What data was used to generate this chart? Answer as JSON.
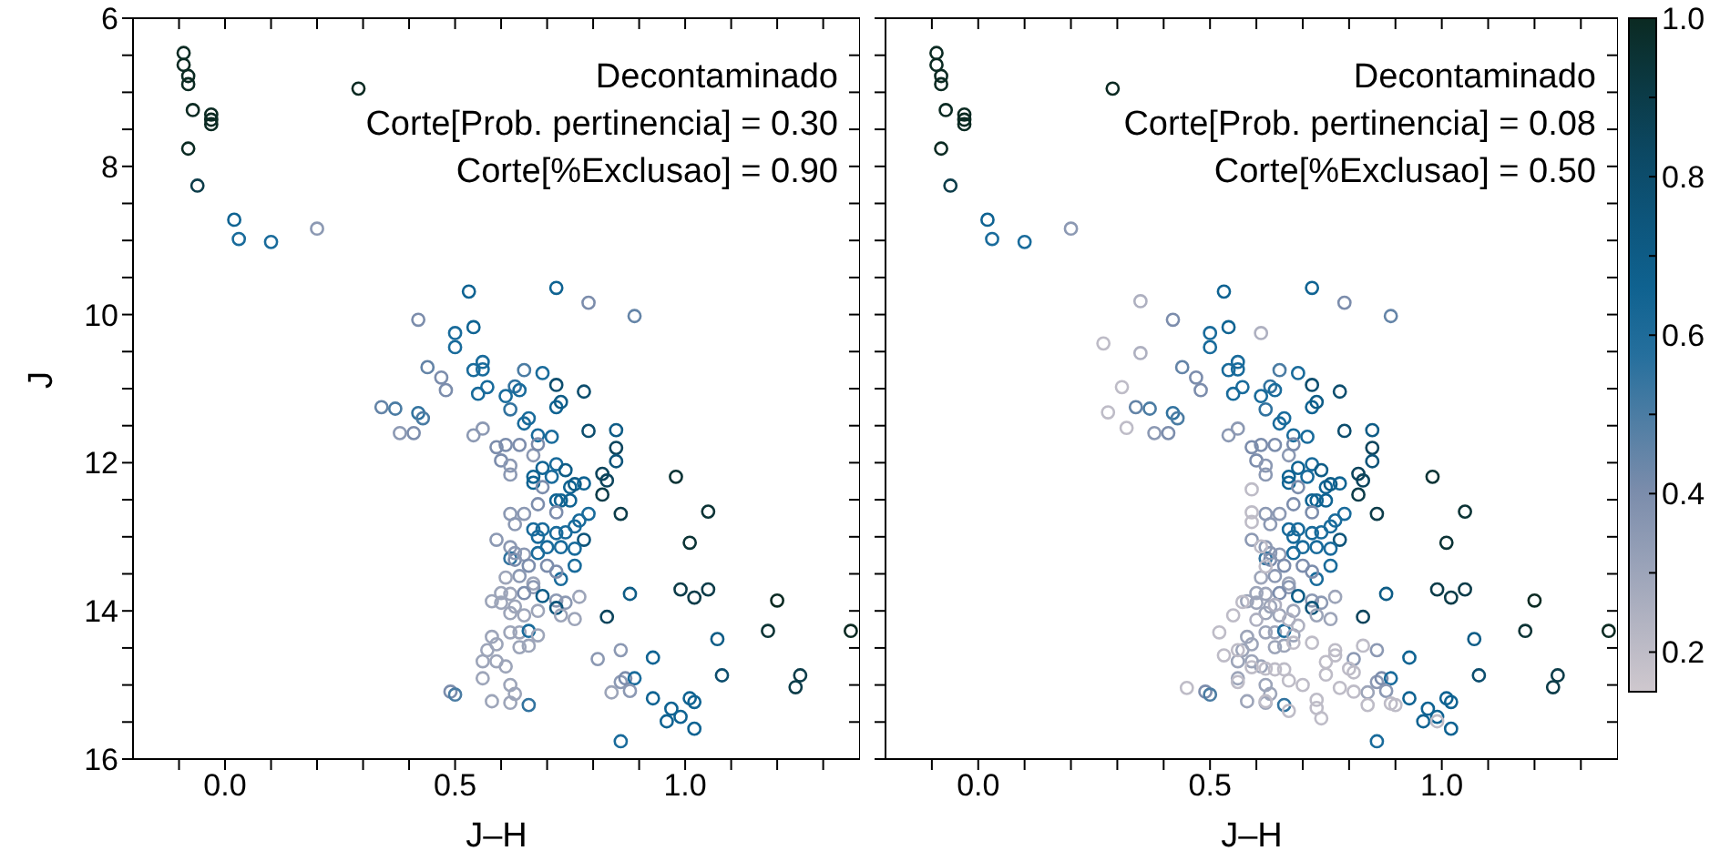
{
  "chart_data": [
    {
      "type": "scatter",
      "xlabel": "J–H",
      "ylabel": "J",
      "marker": "circle",
      "annotations": [
        "Decontaminado",
        "Corte[Prob. pertinencia] = 0.30",
        "Corte[%Exclusao] = 0.90"
      ],
      "xlim": [
        -0.2,
        1.38
      ],
      "ylim": [
        16,
        6
      ],
      "xticks": [
        {
          "value": -0.1,
          "label": null
        },
        {
          "value": 0,
          "label": "0.0"
        },
        {
          "value": 0.1,
          "label": null
        },
        {
          "value": 0.2,
          "label": null
        },
        {
          "value": 0.3,
          "label": null
        },
        {
          "value": 0.4,
          "label": null
        },
        {
          "value": 0.5,
          "label": "0.5"
        },
        {
          "value": 0.6,
          "label": null
        },
        {
          "value": 0.7,
          "label": null
        },
        {
          "value": 0.8,
          "label": null
        },
        {
          "value": 0.9,
          "label": null
        },
        {
          "value": 1,
          "label": "1.0"
        },
        {
          "value": 1.1,
          "label": null
        },
        {
          "value": 1.2,
          "label": null
        },
        {
          "value": 1.3,
          "label": null
        }
      ],
      "yticks": [
        6,
        {
          "value": 6.5,
          "label": null
        },
        {
          "value": 7,
          "label": null
        },
        {
          "value": 7.5,
          "label": null
        },
        8,
        {
          "value": 8.5,
          "label": null
        },
        {
          "value": 9,
          "label": null
        },
        {
          "value": 9.5,
          "label": null
        },
        10,
        {
          "value": 10.5,
          "label": null
        },
        {
          "value": 11,
          "label": null
        },
        {
          "value": 11.5,
          "label": null
        },
        12,
        {
          "value": 12.5,
          "label": null
        },
        {
          "value": 13,
          "label": null
        },
        {
          "value": 13.5,
          "label": null
        },
        14,
        {
          "value": 14.5,
          "label": null
        },
        {
          "value": 15,
          "label": null
        },
        {
          "value": 15.5,
          "label": null
        },
        16
      ],
      "series": [
        {
          "x": [
            -0.09,
            -0.09,
            -0.08,
            -0.08,
            -0.07,
            -0.03,
            -0.03,
            -0.03,
            -0.08,
            0.29,
            -0.06,
            0.02,
            0.03,
            0.1,
            0.2,
            0.53,
            0.72,
            0.79,
            0.89,
            0.42,
            0.5,
            0.54,
            0.5,
            0.44,
            0.47,
            0.48,
            0.56,
            0.54,
            0.56,
            0.57,
            0.55,
            0.65,
            0.69,
            0.63,
            0.64,
            0.72,
            0.78,
            0.61,
            0.62,
            0.72,
            0.73,
            0.34,
            0.37,
            0.42,
            0.43,
            0.38,
            0.41,
            0.54,
            0.56,
            0.66,
            0.65,
            0.68,
            0.71,
            0.79,
            0.85,
            0.85,
            0.85,
            0.82,
            0.83,
            0.82,
            0.86,
            0.98,
            1.05,
            1.01,
            0.59,
            0.61,
            0.64,
            0.67,
            0.68,
            0.6,
            0.62,
            0.62,
            0.67,
            0.67,
            0.69,
            0.72,
            0.74,
            0.71,
            0.69,
            0.75,
            0.76,
            0.78,
            0.72,
            0.73,
            0.75,
            0.68,
            0.72,
            0.62,
            0.65,
            0.63,
            0.79,
            0.77,
            0.76,
            0.74,
            0.67,
            0.69,
            0.72,
            0.68,
            0.78,
            0.59,
            0.62,
            0.62,
            0.63,
            0.63,
            0.65,
            0.68,
            0.7,
            0.73,
            0.76,
            0.76,
            0.73,
            0.7,
            0.72,
            0.66,
            0.64,
            0.61,
            0.67,
            0.67,
            0.6,
            0.62,
            0.65,
            0.69,
            0.77,
            0.72,
            0.74,
            0.58,
            0.6,
            0.63,
            0.72,
            0.73,
            0.76,
            0.62,
            0.65,
            0.68,
            0.88,
            0.99,
            1.02,
            1.05,
            1.2,
            0.83,
            1.36,
            1.18,
            1.07,
            1.08,
            1.25,
            1.24,
            0.93,
            0.86,
            0.81,
            0.86,
            0.87,
            0.89,
            0.84,
            0.88,
            0.93,
            1.01,
            1.02,
            0.97,
            0.99,
            0.96,
            1.02,
            0.86,
            0.58,
            0.59,
            0.57,
            0.56,
            0.59,
            0.61,
            0.62,
            0.64,
            0.66,
            0.68,
            0.64,
            0.66,
            0.56,
            0.62,
            0.63,
            0.58,
            0.62,
            0.66,
            0.49,
            0.5
          ],
          "values": [
            6.47,
            6.63,
            6.78,
            6.89,
            7.24,
            7.3,
            7.37,
            7.43,
            7.76,
            6.95,
            8.26,
            8.72,
            8.98,
            9.02,
            8.84,
            9.69,
            9.64,
            9.84,
            10.02,
            10.07,
            10.25,
            10.17,
            10.44,
            10.71,
            10.85,
            11.02,
            10.64,
            10.75,
            10.74,
            10.98,
            11.07,
            10.75,
            10.79,
            10.97,
            11.02,
            10.95,
            11.04,
            11.1,
            11.28,
            11.25,
            11.18,
            11.25,
            11.27,
            11.33,
            11.4,
            11.6,
            11.6,
            11.63,
            11.54,
            11.4,
            11.47,
            11.63,
            11.65,
            11.57,
            11.56,
            11.8,
            11.98,
            12.15,
            12.24,
            12.43,
            12.69,
            12.19,
            12.66,
            13.08,
            11.79,
            11.76,
            11.76,
            11.9,
            11.75,
            11.97,
            12.04,
            12.16,
            12.19,
            12.27,
            12.07,
            12.02,
            12.1,
            12.19,
            12.33,
            12.33,
            12.29,
            12.28,
            12.51,
            12.51,
            12.51,
            12.56,
            12.67,
            12.69,
            12.69,
            12.83,
            12.69,
            12.78,
            12.86,
            12.94,
            12.9,
            12.9,
            12.95,
            13.0,
            13.04,
            13.04,
            13.14,
            13.29,
            13.31,
            13.22,
            13.24,
            13.22,
            13.14,
            13.14,
            13.16,
            13.39,
            13.57,
            13.39,
            13.47,
            13.39,
            13.53,
            13.55,
            13.63,
            13.68,
            13.76,
            13.77,
            13.76,
            13.8,
            13.81,
            13.86,
            13.89,
            13.87,
            13.89,
            13.94,
            13.96,
            14.06,
            14.11,
            14.03,
            14.06,
            14.0,
            13.77,
            13.71,
            13.82,
            13.71,
            13.86,
            14.08,
            14.27,
            14.27,
            14.38,
            14.87,
            14.87,
            15.03,
            14.63,
            14.53,
            14.65,
            14.96,
            14.91,
            14.91,
            15.1,
            15.08,
            15.18,
            15.18,
            15.23,
            15.32,
            15.43,
            15.49,
            15.59,
            15.76,
            14.35,
            14.45,
            14.53,
            14.68,
            14.68,
            14.75,
            14.29,
            14.29,
            14.27,
            14.33,
            14.49,
            14.47,
            14.91,
            15.0,
            15.12,
            15.22,
            15.24,
            15.27,
            15.09,
            15.13
          ],
          "colors": [
            "#0b2a22",
            "#0b2a22",
            "#0b2a22",
            "#0b2a22",
            "#0b2a22",
            "#0b2a22",
            "#0b2a22",
            "#0b2a22",
            "#0b2a22",
            "#0b2a22",
            "#0c3c49",
            "#0f6392",
            "#196b9b",
            "#196b9b",
            "#8c99b3",
            "#0f6392",
            "#0f6392",
            "#7c8dac",
            "#6484a7",
            "#7c8dac",
            "#196b9b",
            "#0f6392",
            "#196b9b",
            "#6484a7",
            "#7c8dac",
            "#7c8dac",
            "#196b9b",
            "#196b9b",
            "#196b9b",
            "#196b9b",
            "#196b9b",
            "#4b7ca3",
            "#196b9b",
            "#32739f",
            "#196b9b",
            "#0c4d6d",
            "#0c4d6d",
            "#196b9b",
            "#32739f",
            "#0f6392",
            "#0e5c86",
            "#6484a7",
            "#4b7ca3",
            "#32739f",
            "#4b7ca3",
            "#8c99b3",
            "#7c8dac",
            "#8c99b3",
            "#8c99b3",
            "#196b9b",
            "#196b9b",
            "#196b9b",
            "#196b9b",
            "#0c4d6d",
            "#0e5c86",
            "#0c445c",
            "#0d547a",
            "#0c445c",
            "#0c445c",
            "#0c3c49",
            "#0c3c49",
            "#0b3335",
            "#0b3335",
            "#0b3335",
            "#7c8dac",
            "#7c8dac",
            "#7c8dac",
            "#8c99b3",
            "#7c8dac",
            "#7c8dac",
            "#8c99b3",
            "#8c99b3",
            "#0f6392",
            "#0f6392",
            "#0f6392",
            "#196b9b",
            "#0e5c86",
            "#196b9b",
            "#7c8dac",
            "#0f6392",
            "#0e5c86",
            "#0f6392",
            "#0f6392",
            "#0f6392",
            "#0f6392",
            "#7c8dac",
            "#7c8dac",
            "#8c99b3",
            "#8c99b3",
            "#8c99b3",
            "#196b9b",
            "#196b9b",
            "#196b9b",
            "#196b9b",
            "#196b9b",
            "#196b9b",
            "#196b9b",
            "#196b9b",
            "#0d547a",
            "#8c99b3",
            "#8c99b3",
            "#32739f",
            "#7c8dac",
            "#8c99b3",
            "#8c99b3",
            "#196b9b",
            "#196b9b",
            "#196b9b",
            "#196b9b",
            "#196b9b",
            "#196b9b",
            "#7c8dac",
            "#7c8dac",
            "#7c8dac",
            "#8c99b3",
            "#9da5b9",
            "#9da5b9",
            "#8c99b3",
            "#9da5b9",
            "#9da5b9",
            "#7c8dac",
            "#0e5c86",
            "#9da5b9",
            "#8c99b3",
            "#8c99b3",
            "#9da5b9",
            "#9da5b9",
            "#9da5b9",
            "#0d547a",
            "#9da5b9",
            "#9da5b9",
            "#9da5b9",
            "#9da5b9",
            "#9da5b9",
            "#0e5c86",
            "#0c3c49",
            "#0c3c49",
            "#0c3c49",
            "#0b2a22",
            "#0c445c",
            "#0b2a22",
            "#0b3335",
            "#0e5c86",
            "#0c4d6d",
            "#0c3c49",
            "#0c3c49",
            "#0f6392",
            "#8c99b3",
            "#8c99b3",
            "#8c99b3",
            "#7c8dac",
            "#196b9b",
            "#9da5b9",
            "#8c99b3",
            "#0f6392",
            "#0f6392",
            "#0f6392",
            "#0f6392",
            "#0f6392",
            "#0f6392",
            "#0f6392",
            "#196b9b",
            "#9da5b9",
            "#9da5b9",
            "#9da5b9",
            "#9da5b9",
            "#9da5b9",
            "#9da5b9",
            "#9da5b9",
            "#9da5b9",
            "#196b9b",
            "#9da5b9",
            "#9da5b9",
            "#9da5b9",
            "#9da5b9",
            "#9da5b9",
            "#9da5b9",
            "#9da5b9",
            "#9da5b9",
            "#32739f",
            "#7c8dac",
            "#4b7ca3"
          ]
        }
      ]
    },
    {
      "type": "scatter",
      "xlabel": "J–H",
      "marker": "circle",
      "tick_labels": "x",
      "annotations": [
        "Decontaminado",
        "Corte[Prob. pertinencia] = 0.08",
        "Corte[%Exclusao] = 0.50"
      ],
      "xlim": [
        -0.2,
        1.38
      ],
      "ylim": [
        16,
        6
      ],
      "xticks": [
        {
          "value": -0.1,
          "label": null
        },
        {
          "value": 0,
          "label": "0.0"
        },
        {
          "value": 0.1,
          "label": null
        },
        {
          "value": 0.2,
          "label": null
        },
        {
          "value": 0.3,
          "label": null
        },
        {
          "value": 0.4,
          "label": null
        },
        {
          "value": 0.5,
          "label": "0.5"
        },
        {
          "value": 0.6,
          "label": null
        },
        {
          "value": 0.7,
          "label": null
        },
        {
          "value": 0.8,
          "label": null
        },
        {
          "value": 0.9,
          "label": null
        },
        {
          "value": 1,
          "label": "1.0"
        },
        {
          "value": 1.1,
          "label": null
        },
        {
          "value": 1.2,
          "label": null
        },
        {
          "value": 1.3,
          "label": null
        }
      ],
      "yticks": [
        6,
        {
          "value": 6.5,
          "label": null
        },
        {
          "value": 7,
          "label": null
        },
        {
          "value": 7.5,
          "label": null
        },
        8,
        {
          "value": 8.5,
          "label": null
        },
        {
          "value": 9,
          "label": null
        },
        {
          "value": 9.5,
          "label": null
        },
        10,
        {
          "value": 10.5,
          "label": null
        },
        {
          "value": 11,
          "label": null
        },
        {
          "value": 11.5,
          "label": null
        },
        12,
        {
          "value": 12.5,
          "label": null
        },
        {
          "value": 13,
          "label": null
        },
        {
          "value": 13.5,
          "label": null
        },
        14,
        {
          "value": 14.5,
          "label": null
        },
        {
          "value": 15,
          "label": null
        },
        {
          "value": 15.5,
          "label": null
        },
        16
      ],
      "clim": [
        0.15,
        1.0
      ],
      "cticks": [
        0.2,
        {
          "value": 0.3,
          "label": null
        },
        0.4,
        {
          "value": 0.5,
          "label": null
        },
        0.6,
        {
          "value": 0.7,
          "label": null
        },
        0.8,
        {
          "value": 0.9,
          "label": null
        },
        {
          "value": 1,
          "label": "1.0"
        }
      ],
      "series": [
        {
          "x": [
            -0.09,
            -0.09,
            -0.08,
            -0.08,
            -0.07,
            -0.03,
            -0.03,
            -0.03,
            -0.08,
            0.29,
            -0.06,
            0.02,
            0.03,
            0.1,
            0.2,
            0.53,
            0.72,
            0.79,
            0.89,
            0.42,
            0.5,
            0.54,
            0.5,
            0.44,
            0.47,
            0.48,
            0.56,
            0.54,
            0.56,
            0.57,
            0.55,
            0.65,
            0.69,
            0.63,
            0.64,
            0.72,
            0.78,
            0.61,
            0.62,
            0.72,
            0.73,
            0.34,
            0.37,
            0.42,
            0.43,
            0.38,
            0.41,
            0.54,
            0.56,
            0.66,
            0.65,
            0.68,
            0.71,
            0.79,
            0.85,
            0.85,
            0.85,
            0.82,
            0.83,
            0.82,
            0.86,
            0.98,
            1.05,
            1.01,
            0.59,
            0.61,
            0.64,
            0.67,
            0.68,
            0.6,
            0.62,
            0.62,
            0.67,
            0.67,
            0.69,
            0.72,
            0.74,
            0.71,
            0.69,
            0.75,
            0.76,
            0.78,
            0.72,
            0.73,
            0.75,
            0.68,
            0.72,
            0.62,
            0.65,
            0.63,
            0.79,
            0.77,
            0.76,
            0.74,
            0.67,
            0.69,
            0.72,
            0.68,
            0.78,
            0.59,
            0.62,
            0.62,
            0.63,
            0.63,
            0.65,
            0.68,
            0.7,
            0.73,
            0.76,
            0.76,
            0.73,
            0.7,
            0.72,
            0.66,
            0.64,
            0.61,
            0.67,
            0.67,
            0.6,
            0.62,
            0.65,
            0.69,
            0.77,
            0.72,
            0.74,
            0.58,
            0.6,
            0.63,
            0.72,
            0.73,
            0.76,
            0.62,
            0.65,
            0.68,
            0.88,
            0.99,
            1.02,
            1.05,
            1.2,
            0.83,
            1.36,
            1.18,
            1.07,
            1.08,
            1.25,
            1.24,
            0.93,
            0.86,
            0.81,
            0.86,
            0.87,
            0.89,
            0.84,
            0.88,
            0.93,
            1.01,
            1.02,
            0.97,
            0.99,
            0.96,
            1.02,
            0.86,
            0.58,
            0.59,
            0.57,
            0.56,
            0.59,
            0.61,
            0.62,
            0.64,
            0.66,
            0.68,
            0.64,
            0.66,
            0.56,
            0.62,
            0.63,
            0.58,
            0.62,
            0.66,
            0.49,
            0.5,
            0.35,
            0.61,
            0.27,
            0.35,
            0.31,
            0.28,
            0.32,
            0.59,
            0.59,
            0.59,
            0.61,
            0.62,
            0.55,
            0.57,
            0.52,
            0.53,
            0.56,
            0.56,
            0.59,
            0.62,
            0.64,
            0.66,
            0.67,
            0.7,
            0.73,
            0.74,
            0.73,
            0.75,
            0.77,
            0.77,
            0.78,
            0.8,
            0.81,
            0.81,
            0.83,
            0.84,
            0.89,
            0.9,
            0.45,
            0.67,
            0.69,
            0.72,
            0.68,
            0.75,
            0.62,
            0.67,
            0.99,
            0.64,
            0.6
          ],
          "values": [
            6.47,
            6.63,
            6.78,
            6.89,
            7.24,
            7.3,
            7.37,
            7.43,
            7.76,
            6.95,
            8.26,
            8.72,
            8.98,
            9.02,
            8.84,
            9.69,
            9.64,
            9.84,
            10.02,
            10.07,
            10.25,
            10.17,
            10.44,
            10.71,
            10.85,
            11.02,
            10.64,
            10.75,
            10.74,
            10.98,
            11.07,
            10.75,
            10.79,
            10.97,
            11.02,
            10.95,
            11.04,
            11.1,
            11.28,
            11.25,
            11.18,
            11.25,
            11.27,
            11.33,
            11.4,
            11.6,
            11.6,
            11.63,
            11.54,
            11.4,
            11.47,
            11.63,
            11.65,
            11.57,
            11.56,
            11.8,
            11.98,
            12.15,
            12.24,
            12.43,
            12.69,
            12.19,
            12.66,
            13.08,
            11.79,
            11.76,
            11.76,
            11.9,
            11.75,
            11.97,
            12.04,
            12.16,
            12.19,
            12.27,
            12.07,
            12.02,
            12.1,
            12.19,
            12.33,
            12.33,
            12.29,
            12.28,
            12.51,
            12.51,
            12.51,
            12.56,
            12.67,
            12.69,
            12.69,
            12.83,
            12.69,
            12.78,
            12.86,
            12.94,
            12.9,
            12.9,
            12.95,
            13.0,
            13.04,
            13.04,
            13.14,
            13.29,
            13.31,
            13.22,
            13.24,
            13.22,
            13.14,
            13.14,
            13.16,
            13.39,
            13.57,
            13.39,
            13.47,
            13.39,
            13.53,
            13.55,
            13.63,
            13.68,
            13.76,
            13.77,
            13.76,
            13.8,
            13.81,
            13.86,
            13.89,
            13.87,
            13.89,
            13.94,
            13.96,
            14.06,
            14.11,
            14.03,
            14.06,
            14.0,
            13.77,
            13.71,
            13.82,
            13.71,
            13.86,
            14.08,
            14.27,
            14.27,
            14.38,
            14.87,
            14.87,
            15.03,
            14.63,
            14.53,
            14.65,
            14.96,
            14.91,
            14.91,
            15.1,
            15.08,
            15.18,
            15.18,
            15.23,
            15.32,
            15.43,
            15.49,
            15.59,
            15.76,
            14.35,
            14.45,
            14.53,
            14.68,
            14.68,
            14.75,
            14.29,
            14.29,
            14.27,
            14.33,
            14.49,
            14.47,
            14.91,
            15.0,
            15.12,
            15.22,
            15.24,
            15.27,
            15.09,
            15.13,
            9.82,
            10.25,
            10.39,
            10.52,
            10.98,
            11.32,
            11.53,
            12.36,
            12.67,
            12.8,
            13.13,
            13.4,
            14.06,
            13.88,
            14.29,
            14.6,
            14.53,
            14.96,
            14.76,
            14.78,
            14.79,
            14.79,
            14.94,
            15.0,
            15.2,
            15.45,
            15.31,
            14.86,
            14.53,
            14.6,
            15.04,
            14.78,
            14.83,
            15.09,
            14.47,
            15.27,
            15.25,
            15.27,
            15.04,
            14.12,
            14.2,
            14.43,
            14.43,
            14.69,
            15.22,
            15.35,
            15.49,
            13.92,
            14.12
          ],
          "cvalues": [
            1.0,
            1.0,
            1.0,
            1.0,
            1.0,
            1.0,
            1.0,
            1.0,
            1.0,
            1.0,
            0.9,
            0.65,
            0.6,
            0.6,
            0.35,
            0.65,
            0.65,
            0.4,
            0.45,
            0.4,
            0.6,
            0.65,
            0.6,
            0.45,
            0.4,
            0.4,
            0.6,
            0.6,
            0.6,
            0.6,
            0.6,
            0.5,
            0.6,
            0.55,
            0.6,
            0.8,
            0.8,
            0.6,
            0.55,
            0.65,
            0.7,
            0.45,
            0.5,
            0.55,
            0.5,
            0.35,
            0.4,
            0.35,
            0.35,
            0.6,
            0.6,
            0.6,
            0.6,
            0.8,
            0.7,
            0.85,
            0.75,
            0.85,
            0.85,
            0.9,
            0.9,
            0.95,
            0.95,
            0.95,
            0.4,
            0.4,
            0.4,
            0.35,
            0.4,
            0.4,
            0.35,
            0.35,
            0.65,
            0.65,
            0.65,
            0.6,
            0.7,
            0.6,
            0.4,
            0.65,
            0.7,
            0.65,
            0.65,
            0.65,
            0.65,
            0.4,
            0.4,
            0.35,
            0.35,
            0.35,
            0.6,
            0.6,
            0.6,
            0.6,
            0.6,
            0.6,
            0.6,
            0.6,
            0.75,
            0.35,
            0.35,
            0.55,
            0.4,
            0.35,
            0.35,
            0.6,
            0.6,
            0.6,
            0.6,
            0.6,
            0.6,
            0.4,
            0.4,
            0.4,
            0.35,
            0.3,
            0.3,
            0.35,
            0.3,
            0.3,
            0.4,
            0.7,
            0.3,
            0.35,
            0.35,
            0.3,
            0.3,
            0.3,
            0.75,
            0.3,
            0.3,
            0.3,
            0.3,
            0.3,
            0.7,
            0.9,
            0.9,
            0.9,
            1.0,
            0.85,
            1.0,
            0.95,
            0.7,
            0.8,
            0.9,
            0.9,
            0.65,
            0.35,
            0.35,
            0.35,
            0.4,
            0.6,
            0.3,
            0.35,
            0.65,
            0.65,
            0.65,
            0.65,
            0.65,
            0.65,
            0.65,
            0.6,
            0.3,
            0.3,
            0.3,
            0.3,
            0.3,
            0.3,
            0.3,
            0.3,
            0.6,
            0.3,
            0.3,
            0.3,
            0.3,
            0.3,
            0.3,
            0.3,
            0.3,
            0.55,
            0.4,
            0.5,
            0.25,
            0.25,
            0.2,
            0.25,
            0.2,
            0.2,
            0.2,
            0.2,
            0.2,
            0.2,
            0.2,
            0.2,
            0.2,
            0.2,
            0.2,
            0.2,
            0.2,
            0.2,
            0.2,
            0.2,
            0.2,
            0.2,
            0.2,
            0.2,
            0.2,
            0.2,
            0.2,
            0.2,
            0.2,
            0.2,
            0.2,
            0.2,
            0.2,
            0.2,
            0.2,
            0.2,
            0.2,
            0.2,
            0.2,
            0.25,
            0.25,
            0.2,
            0.2,
            0.2,
            0.2,
            0.2,
            0.2,
            0.25,
            0.25
          ]
        }
      ]
    }
  ]
}
